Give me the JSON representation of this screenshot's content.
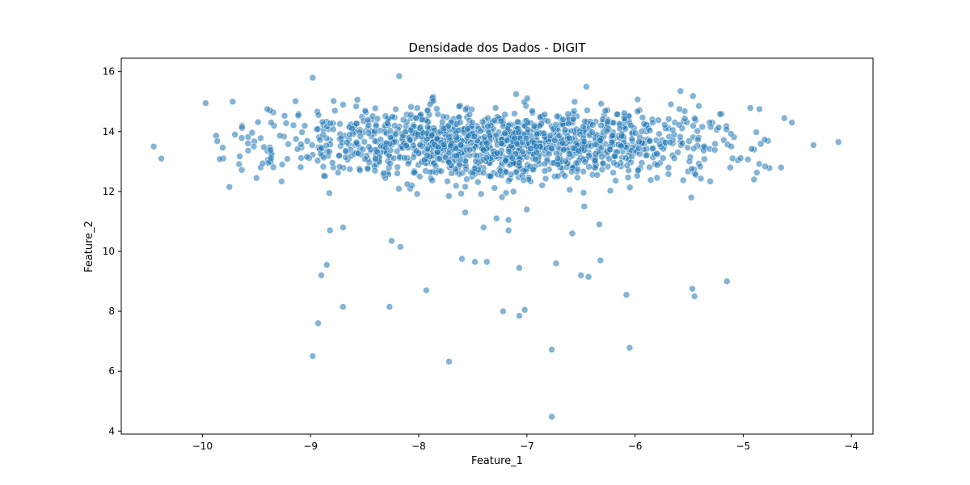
{
  "chart_data": {
    "type": "scatter",
    "title": "Densidade dos Dados - DIGIT",
    "xlabel": "Feature_1",
    "ylabel": "Feature_2",
    "xlim": [
      -10.75,
      -3.8
    ],
    "ylim": [
      3.9,
      16.45
    ],
    "xticks": [
      -10,
      -9,
      -8,
      -7,
      -6,
      -5,
      -4
    ],
    "xtick_labels": [
      "−10",
      "−9",
      "−8",
      "−7",
      "−6",
      "−5",
      "−4"
    ],
    "yticks": [
      4,
      6,
      8,
      10,
      12,
      14,
      16
    ],
    "ytick_labels": [
      "4",
      "6",
      "8",
      "10",
      "12",
      "14",
      "16"
    ],
    "grid": false,
    "marker_color": "#1f77b4",
    "marker_alpha": 0.55,
    "points": [
      {
        "x": -10.45,
        "y": 13.5
      },
      {
        "x": -10.38,
        "y": 13.1
      },
      {
        "x": -9.97,
        "y": 14.95
      },
      {
        "x": -9.72,
        "y": 15.0
      },
      {
        "x": -9.5,
        "y": 12.45
      },
      {
        "x": -9.75,
        "y": 12.15
      },
      {
        "x": -9.4,
        "y": 14.75
      },
      {
        "x": -8.98,
        "y": 15.8
      },
      {
        "x": -8.18,
        "y": 15.85
      },
      {
        "x": -7.1,
        "y": 15.25
      },
      {
        "x": -6.45,
        "y": 15.5
      },
      {
        "x": -5.58,
        "y": 15.35
      },
      {
        "x": -4.85,
        "y": 14.75
      },
      {
        "x": -4.62,
        "y": 14.45
      },
      {
        "x": -4.35,
        "y": 13.55
      },
      {
        "x": -4.12,
        "y": 13.65
      },
      {
        "x": -4.55,
        "y": 14.3
      },
      {
        "x": -4.9,
        "y": 12.4
      },
      {
        "x": -5.12,
        "y": 12.8
      },
      {
        "x": -5.48,
        "y": 11.8
      },
      {
        "x": -4.65,
        "y": 12.8
      },
      {
        "x": -8.82,
        "y": 10.7
      },
      {
        "x": -8.7,
        "y": 10.8
      },
      {
        "x": -8.85,
        "y": 9.55
      },
      {
        "x": -8.9,
        "y": 9.2
      },
      {
        "x": -8.25,
        "y": 10.35
      },
      {
        "x": -8.17,
        "y": 10.15
      },
      {
        "x": -7.6,
        "y": 9.75
      },
      {
        "x": -7.48,
        "y": 9.65
      },
      {
        "x": -7.37,
        "y": 9.65
      },
      {
        "x": -7.07,
        "y": 9.45
      },
      {
        "x": -6.73,
        "y": 9.6
      },
      {
        "x": -6.32,
        "y": 9.7
      },
      {
        "x": -6.5,
        "y": 9.2
      },
      {
        "x": -6.43,
        "y": 9.15
      },
      {
        "x": -6.58,
        "y": 10.6
      },
      {
        "x": -6.33,
        "y": 10.9
      },
      {
        "x": -7.17,
        "y": 10.7
      },
      {
        "x": -7.4,
        "y": 10.8
      },
      {
        "x": -7.28,
        "y": 11.1
      },
      {
        "x": -7.17,
        "y": 11.05
      },
      {
        "x": -7.57,
        "y": 11.3
      },
      {
        "x": -7.0,
        "y": 11.4
      },
      {
        "x": -6.47,
        "y": 11.5
      },
      {
        "x": -7.93,
        "y": 8.7
      },
      {
        "x": -8.7,
        "y": 8.15
      },
      {
        "x": -8.27,
        "y": 8.15
      },
      {
        "x": -7.22,
        "y": 8.0
      },
      {
        "x": -7.02,
        "y": 8.05
      },
      {
        "x": -7.07,
        "y": 7.85
      },
      {
        "x": -6.08,
        "y": 8.55
      },
      {
        "x": -5.47,
        "y": 8.75
      },
      {
        "x": -5.45,
        "y": 8.5
      },
      {
        "x": -5.15,
        "y": 9.0
      },
      {
        "x": -8.93,
        "y": 7.6
      },
      {
        "x": -8.98,
        "y": 6.5
      },
      {
        "x": -7.72,
        "y": 6.32
      },
      {
        "x": -6.77,
        "y": 6.72
      },
      {
        "x": -6.05,
        "y": 6.78
      },
      {
        "x": -6.77,
        "y": 4.48
      }
    ],
    "dense_cluster": {
      "x_range": [
        -9.9,
        -4.7
      ],
      "x_center": -7.2,
      "x_sd": 1.05,
      "y_center": 13.6,
      "y_sd": 0.6,
      "count": 1400
    }
  }
}
